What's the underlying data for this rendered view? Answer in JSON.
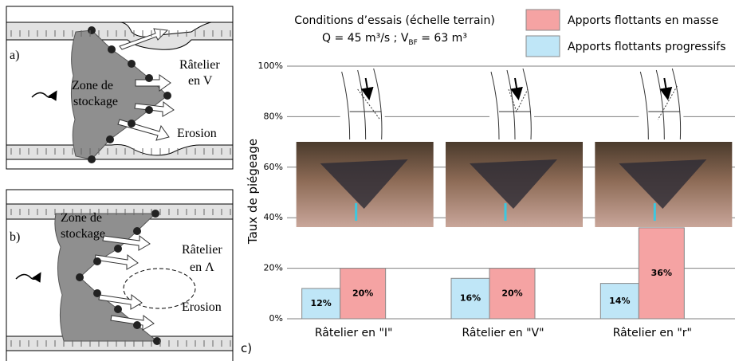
{
  "chart_data": {
    "type": "bar",
    "title": "Conditions d’essais (échelle terrain)",
    "subtitle_parts": [
      "Q = 45 m³/s ; V",
      "BF",
      " = 63 m³"
    ],
    "y_label": "Taux de piégeage",
    "panel_label": "c)",
    "categories": [
      "Râtelier en \"I\"",
      "Râtelier en \"V\"",
      "Râtelier en \"r\""
    ],
    "series": [
      {
        "name": "Apports flottants progressifs",
        "color": "#bfe6f7",
        "values": [
          12,
          16,
          14
        ],
        "value_labels": [
          "12%",
          "16%",
          "14%"
        ]
      },
      {
        "name": "Apports flottants en masse",
        "color": "#f5a3a3",
        "values": [
          20,
          20,
          36
        ],
        "value_labels": [
          "20%",
          "20%",
          "36%"
        ]
      }
    ],
    "ylim": [
      0,
      100
    ],
    "yticks": [
      {
        "value": 0,
        "label": "0%"
      },
      {
        "value": 20,
        "label": "20%"
      },
      {
        "value": 40,
        "label": "40%"
      },
      {
        "value": 60,
        "label": "60%"
      },
      {
        "value": 80,
        "label": "80%"
      },
      {
        "value": 100,
        "label": "100%"
      }
    ],
    "grid": true
  },
  "diagrams": [
    {
      "label": "a)",
      "zone": [
        "Zone de",
        "stockage"
      ],
      "rack": [
        "Râtelier",
        "en V"
      ],
      "erosion": "Erosion"
    },
    {
      "label": "b)",
      "zone": [
        "Zone de",
        "stockage"
      ],
      "rack": [
        "Râtelier",
        "en Λ"
      ],
      "erosion": "Erosion"
    }
  ]
}
